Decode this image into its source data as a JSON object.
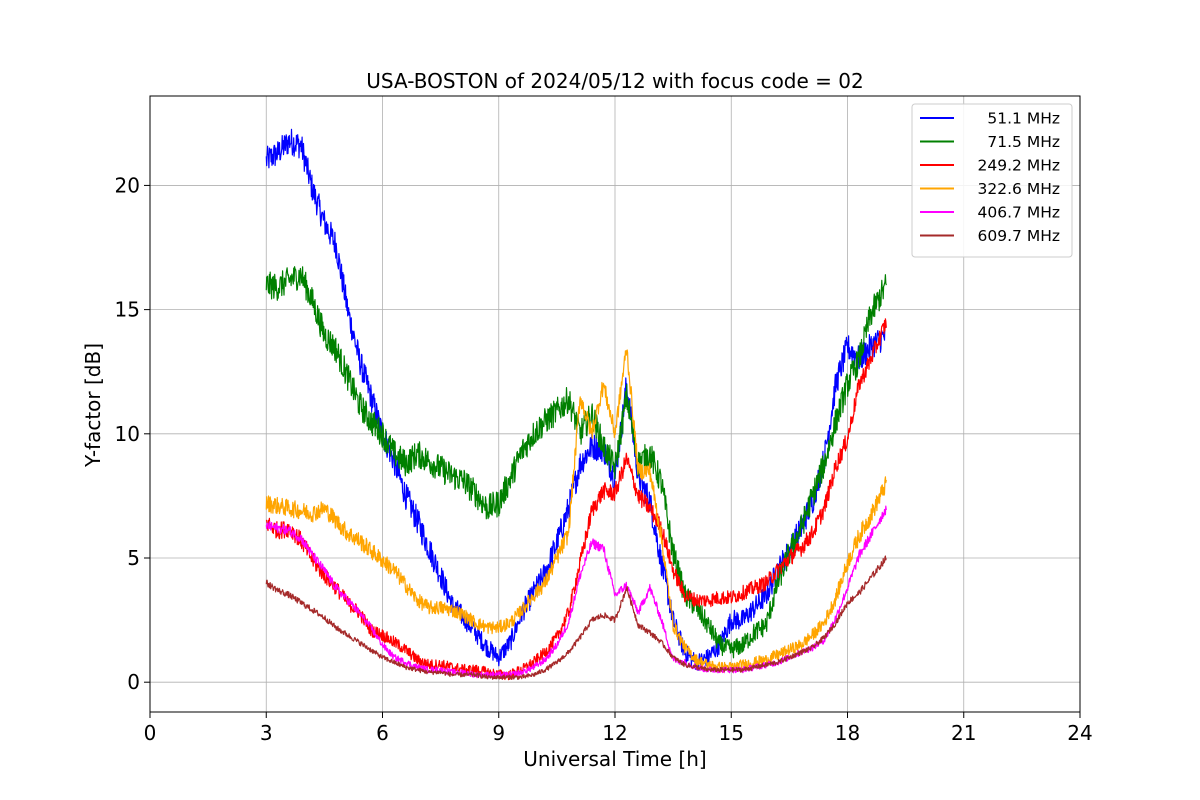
{
  "chart_data": {
    "type": "line",
    "title": "USA-BOSTON of 2024/05/12 with focus code = 02",
    "xlabel": "Universal Time [h]",
    "ylabel": "Y-factor [dB]",
    "xlim": [
      0,
      24
    ],
    "ylim": [
      -1.2,
      23.6
    ],
    "xticks": [
      0,
      3,
      6,
      9,
      12,
      15,
      18,
      21,
      24
    ],
    "xtick_labels": [
      "0",
      "3",
      "6",
      "9",
      "12",
      "15",
      "18",
      "21",
      "24"
    ],
    "yticks": [
      0,
      5,
      10,
      15,
      20
    ],
    "ytick_labels": [
      "0",
      "5",
      "10",
      "15",
      "20"
    ],
    "grid": true,
    "legend_position": "top-right",
    "series": [
      {
        "name": "51.1 MHz",
        "color": "#0000ff",
        "x": [
          3.0,
          3.3,
          3.6,
          3.9,
          4.2,
          4.5,
          4.8,
          5.1,
          5.4,
          5.7,
          6.0,
          6.3,
          6.6,
          6.9,
          7.2,
          7.5,
          7.8,
          8.1,
          8.4,
          8.7,
          9.0,
          9.3,
          9.6,
          9.9,
          10.2,
          10.5,
          10.8,
          11.1,
          11.4,
          11.7,
          12.0,
          12.3,
          12.6,
          12.9,
          13.2,
          13.5,
          13.8,
          14.1,
          14.4,
          14.7,
          15.0,
          15.3,
          15.6,
          15.9,
          16.2,
          16.5,
          16.8,
          17.1,
          17.4,
          17.7,
          18.0,
          18.3,
          18.6,
          19.0
        ],
        "y": [
          21.0,
          21.3,
          21.8,
          21.6,
          19.8,
          18.5,
          17.6,
          15.0,
          13.0,
          11.5,
          10.0,
          8.9,
          7.5,
          6.5,
          5.4,
          4.3,
          3.1,
          2.6,
          2.0,
          1.4,
          1.0,
          1.6,
          2.8,
          3.6,
          4.4,
          5.6,
          7.0,
          8.8,
          9.5,
          9.4,
          8.2,
          12.0,
          8.3,
          7.3,
          4.8,
          2.5,
          1.2,
          0.8,
          1.0,
          1.5,
          2.5,
          2.5,
          3.0,
          3.5,
          4.5,
          5.3,
          6.2,
          7.3,
          9.0,
          12.0,
          13.5,
          13.0,
          13.5,
          14.0
        ]
      },
      {
        "name": "71.5 MHz",
        "color": "#008000",
        "x": [
          3.0,
          3.3,
          3.6,
          3.9,
          4.2,
          4.5,
          4.8,
          5.1,
          5.4,
          5.7,
          6.0,
          6.3,
          6.6,
          6.9,
          7.2,
          7.5,
          7.8,
          8.1,
          8.4,
          8.7,
          9.0,
          9.3,
          9.6,
          9.9,
          10.2,
          10.5,
          10.8,
          11.1,
          11.4,
          11.7,
          12.0,
          12.3,
          12.6,
          12.9,
          13.2,
          13.5,
          13.8,
          14.1,
          14.4,
          14.7,
          15.0,
          15.3,
          15.6,
          15.9,
          16.2,
          16.5,
          16.8,
          17.1,
          17.4,
          17.7,
          18.0,
          18.3,
          18.6,
          19.0
        ],
        "y": [
          16.0,
          15.9,
          16.2,
          16.4,
          15.3,
          14.0,
          13.4,
          12.3,
          11.2,
          10.5,
          10.0,
          9.2,
          8.8,
          9.2,
          8.9,
          8.6,
          8.3,
          8.1,
          7.6,
          7.0,
          7.2,
          8.2,
          9.3,
          10.0,
          10.5,
          10.9,
          11.4,
          10.0,
          10.8,
          9.5,
          8.6,
          11.5,
          8.8,
          9.2,
          8.0,
          5.2,
          3.5,
          3.0,
          2.3,
          1.5,
          1.3,
          1.5,
          2.0,
          2.3,
          4.0,
          5.2,
          6.2,
          7.5,
          8.8,
          10.5,
          12.0,
          13.0,
          14.8,
          16.0
        ]
      },
      {
        "name": "249.2 MHz",
        "color": "#ff0000",
        "x": [
          3.0,
          3.3,
          3.6,
          3.9,
          4.2,
          4.5,
          4.8,
          5.1,
          5.4,
          5.7,
          6.0,
          6.3,
          6.6,
          6.9,
          7.2,
          7.5,
          7.8,
          8.1,
          8.4,
          8.7,
          9.0,
          9.3,
          9.6,
          9.9,
          10.2,
          10.5,
          10.8,
          11.1,
          11.4,
          11.7,
          12.0,
          12.3,
          12.6,
          12.9,
          13.2,
          13.5,
          13.8,
          14.1,
          14.4,
          14.7,
          15.0,
          15.3,
          15.6,
          15.9,
          16.2,
          16.5,
          16.8,
          17.1,
          17.4,
          17.7,
          18.0,
          18.3,
          18.6,
          19.0
        ],
        "y": [
          6.4,
          6.1,
          6.2,
          5.7,
          4.9,
          4.3,
          3.8,
          3.2,
          2.8,
          2.1,
          1.9,
          1.6,
          1.3,
          0.9,
          0.7,
          0.7,
          0.6,
          0.5,
          0.5,
          0.4,
          0.3,
          0.3,
          0.5,
          0.8,
          1.2,
          1.8,
          2.8,
          4.8,
          6.9,
          7.7,
          7.6,
          9.0,
          7.5,
          7.0,
          6.2,
          4.5,
          3.5,
          3.3,
          3.3,
          3.4,
          3.4,
          3.6,
          3.8,
          4.0,
          4.5,
          5.0,
          5.4,
          6.0,
          7.0,
          8.7,
          9.8,
          12.0,
          13.0,
          14.5
        ]
      },
      {
        "name": "322.6 MHz",
        "color": "#ffa500",
        "x": [
          3.0,
          3.3,
          3.6,
          3.9,
          4.2,
          4.5,
          4.8,
          5.1,
          5.4,
          5.7,
          6.0,
          6.3,
          6.6,
          6.9,
          7.2,
          7.5,
          7.8,
          8.1,
          8.4,
          8.7,
          9.0,
          9.3,
          9.6,
          9.9,
          10.2,
          10.5,
          10.8,
          11.1,
          11.4,
          11.7,
          12.0,
          12.3,
          12.6,
          12.9,
          13.2,
          13.5,
          13.8,
          14.1,
          14.4,
          14.7,
          15.0,
          15.3,
          15.6,
          15.9,
          16.2,
          16.5,
          16.8,
          17.1,
          17.4,
          17.7,
          18.0,
          18.3,
          18.6,
          19.0
        ],
        "y": [
          7.2,
          7.1,
          7.0,
          6.9,
          6.8,
          7.0,
          6.5,
          6.0,
          5.7,
          5.3,
          4.9,
          4.5,
          3.9,
          3.3,
          3.0,
          3.0,
          2.9,
          2.7,
          2.4,
          2.2,
          2.2,
          2.4,
          2.9,
          3.5,
          4.0,
          5.0,
          6.0,
          11.5,
          10.0,
          12.0,
          10.0,
          13.5,
          8.5,
          8.5,
          5.8,
          2.3,
          1.4,
          0.9,
          0.7,
          0.6,
          0.6,
          0.7,
          0.8,
          0.9,
          1.1,
          1.3,
          1.5,
          1.9,
          2.4,
          3.4,
          4.8,
          5.9,
          6.7,
          8.0
        ]
      },
      {
        "name": "406.7 MHz",
        "color": "#ff00ff",
        "x": [
          3.0,
          3.3,
          3.6,
          3.9,
          4.2,
          4.5,
          4.8,
          5.1,
          5.4,
          5.7,
          6.0,
          6.3,
          6.6,
          6.9,
          7.2,
          7.5,
          7.8,
          8.1,
          8.4,
          8.7,
          9.0,
          9.3,
          9.6,
          9.9,
          10.2,
          10.5,
          10.8,
          11.1,
          11.4,
          11.7,
          12.0,
          12.3,
          12.6,
          12.9,
          13.2,
          13.5,
          13.8,
          14.1,
          14.4,
          14.7,
          15.0,
          15.3,
          15.6,
          15.9,
          16.2,
          16.5,
          16.8,
          17.1,
          17.4,
          17.7,
          18.0,
          18.3,
          18.6,
          19.0
        ],
        "y": [
          6.3,
          6.2,
          6.1,
          5.8,
          5.1,
          4.5,
          3.8,
          3.3,
          2.8,
          2.2,
          1.5,
          1.0,
          0.8,
          0.6,
          0.5,
          0.5,
          0.4,
          0.4,
          0.3,
          0.3,
          0.3,
          0.3,
          0.4,
          0.6,
          0.9,
          1.5,
          2.4,
          4.3,
          5.6,
          5.4,
          3.5,
          3.9,
          2.8,
          3.8,
          2.5,
          0.9,
          0.8,
          0.6,
          0.5,
          0.5,
          0.5,
          0.5,
          0.6,
          0.7,
          0.8,
          1.0,
          1.2,
          1.4,
          1.7,
          2.6,
          3.8,
          5.1,
          5.9,
          7.0
        ]
      },
      {
        "name": "609.7 MHz",
        "color": "#a52a2a",
        "x": [
          3.0,
          3.3,
          3.6,
          3.9,
          4.2,
          4.5,
          4.8,
          5.1,
          5.4,
          5.7,
          6.0,
          6.3,
          6.6,
          6.9,
          7.2,
          7.5,
          7.8,
          8.1,
          8.4,
          8.7,
          9.0,
          9.3,
          9.6,
          9.9,
          10.2,
          10.5,
          10.8,
          11.1,
          11.4,
          11.7,
          12.0,
          12.3,
          12.6,
          12.9,
          13.2,
          13.5,
          13.8,
          14.1,
          14.4,
          14.7,
          15.0,
          15.3,
          15.6,
          15.9,
          16.2,
          16.5,
          16.8,
          17.1,
          17.4,
          17.7,
          18.0,
          18.3,
          18.6,
          19.0
        ],
        "y": [
          4.0,
          3.7,
          3.5,
          3.2,
          2.9,
          2.6,
          2.2,
          1.9,
          1.6,
          1.3,
          1.0,
          0.8,
          0.6,
          0.5,
          0.4,
          0.4,
          0.3,
          0.3,
          0.3,
          0.2,
          0.2,
          0.2,
          0.2,
          0.3,
          0.5,
          0.8,
          1.2,
          1.8,
          2.5,
          2.7,
          2.5,
          3.8,
          2.3,
          2.0,
          1.6,
          1.0,
          0.7,
          0.6,
          0.5,
          0.5,
          0.5,
          0.5,
          0.6,
          0.7,
          0.8,
          1.0,
          1.2,
          1.4,
          1.8,
          2.4,
          3.2,
          3.6,
          4.2,
          5.0
        ]
      }
    ]
  }
}
